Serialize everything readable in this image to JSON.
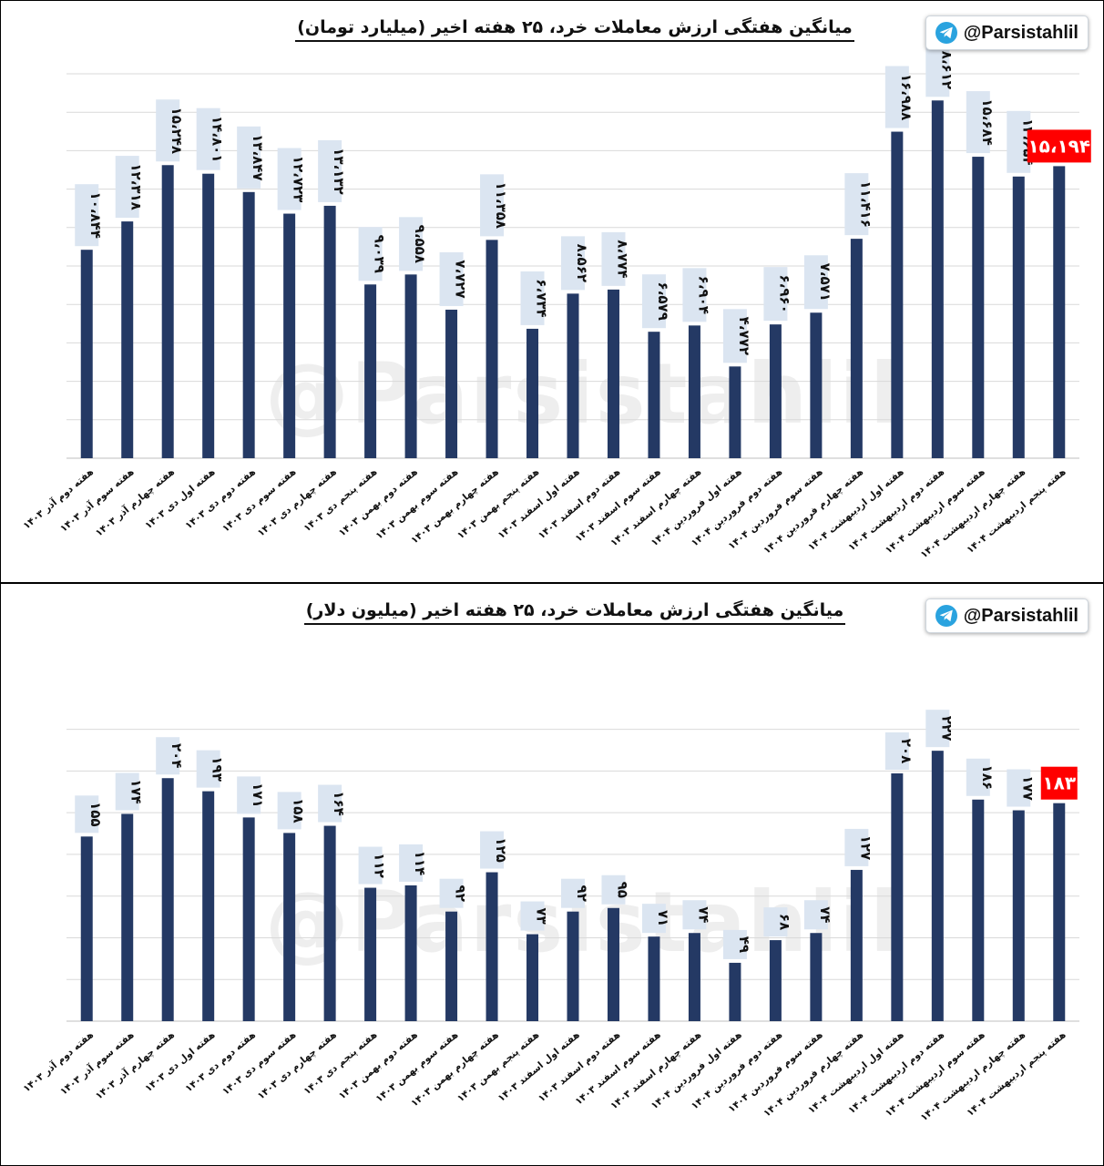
{
  "watermark": "@Parsistahlil",
  "badge": {
    "handle": "@Parsistahlil",
    "icon": "telegram-icon",
    "color": "#2aa3df"
  },
  "colors": {
    "bar": "#243964",
    "label_bg": "#dbe5f1",
    "highlight": "#ff0000",
    "grid": "#d9d9d9"
  },
  "chart_data": [
    {
      "type": "bar",
      "title": "میانگین هفتگی ارزش معاملات خرد، ۲۵ هفته اخیر (میلیارد تومان)",
      "xlabel": "",
      "ylabel": "",
      "ylim": [
        0,
        20000
      ],
      "grid": true,
      "categories": [
        "هفته دوم آذر ۱۴۰۳",
        "هفته سوم آذر ۱۴۰۳",
        "هفته چهارم آذر ۱۴۰۳",
        "هفته اول دی ۱۴۰۳",
        "هفته دوم دی ۱۴۰۳",
        "هفته سوم دی ۱۴۰۳",
        "هفته چهارم دی ۱۴۰۳",
        "هفته پنجم دی ۱۴۰۳",
        "هفته دوم بهمن ۱۴۰۳",
        "هفته سوم بهمن ۱۴۰۳",
        "هفته چهارم بهمن ۱۴۰۳",
        "هفته پنجم بهمن ۱۴۰۳",
        "هفته اول اسفند ۱۴۰۳",
        "هفته دوم اسفند ۱۴۰۳",
        "هفته سوم اسفند ۱۴۰۳",
        "هفته چهارم اسفند ۱۴۰۳",
        "هفته اول فروردین ۱۴۰۴",
        "هفته دوم فروردین ۱۴۰۴",
        "هفته سوم فروردین ۱۴۰۴",
        "هفته چهارم فروردین ۱۴۰۴",
        "هفته اول اردیبهشت ۱۴۰۴",
        "هفته دوم اردیبهشت ۱۴۰۴",
        "هفته سوم اردیبهشت ۱۴۰۴",
        "هفته چهارم اردیبهشت ۱۴۰۴",
        "هفته پنجم اردیبهشت ۱۴۰۴"
      ],
      "values": [
        10844,
        12318,
        15248,
        14801,
        13847,
        12723,
        13132,
        9039,
        9558,
        7727,
        11358,
        6734,
        8562,
        8774,
        6579,
        6904,
        4772,
        6960,
        7571,
        11416,
        16988,
        18612,
        15684,
        14654,
        15194
      ],
      "data_labels": [
        "۱۰،۸۴۴",
        "۱۲،۳۱۸",
        "۱۵،۲۴۸",
        "۱۴،۸۰۱",
        "۱۳،۸۴۷",
        "۱۲،۷۲۳",
        "۱۳،۱۳۲",
        "۹،۰۳۹",
        "۹،۵۵۸",
        "۷،۷۲۷",
        "۱۱،۳۵۸",
        "۶،۷۳۴",
        "۸،۵۶۲",
        "۸،۷۷۴",
        "۶،۵۷۹",
        "۶،۹۰۴",
        "۴،۷۷۲",
        "۶،۹۶۰",
        "۷،۵۷۱",
        "۱۱،۴۱۶",
        "۱۶،۹۸۸",
        "۱۸،۶۱۲",
        "۱۵،۶۸۴",
        "۱۴،۶۵۴",
        "۱۵،۱۹۴"
      ],
      "highlight_index": 24
    },
    {
      "type": "bar",
      "title": "میانگین هفتگی ارزش معاملات خرد، ۲۵ هفته اخیر (میلیون دلار)",
      "xlabel": "",
      "ylabel": "",
      "ylim": [
        0,
        260
      ],
      "grid": true,
      "categories": [
        "هفته دوم آذر ۱۴۰۳",
        "هفته سوم آذر ۱۴۰۳",
        "هفته چهارم آذر ۱۴۰۳",
        "هفته اول دی ۱۴۰۳",
        "هفته دوم دی ۱۴۰۳",
        "هفته سوم دی ۱۴۰۳",
        "هفته چهارم دی ۱۴۰۳",
        "هفته پنجم دی ۱۴۰۳",
        "هفته دوم بهمن ۱۴۰۳",
        "هفته سوم بهمن ۱۴۰۳",
        "هفته چهارم بهمن ۱۴۰۳",
        "هفته پنجم بهمن ۱۴۰۳",
        "هفته اول اسفند ۱۴۰۳",
        "هفته دوم اسفند ۱۴۰۳",
        "هفته سوم اسفند ۱۴۰۳",
        "هفته چهارم اسفند ۱۴۰۳",
        "هفته اول فروردین ۱۴۰۴",
        "هفته دوم فروردین ۱۴۰۴",
        "هفته سوم فروردین ۱۴۰۴",
        "هفته چهارم فروردین ۱۴۰۴",
        "هفته اول اردیبهشت ۱۴۰۴",
        "هفته دوم اردیبهشت ۱۴۰۴",
        "هفته سوم اردیبهشت ۱۴۰۴",
        "هفته چهارم اردیبهشت ۱۴۰۴",
        "هفته پنجم اردیبهشت ۱۴۰۴"
      ],
      "values": [
        155,
        174,
        204,
        193,
        171,
        158,
        164,
        112,
        114,
        92,
        125,
        73,
        92,
        95,
        71,
        74,
        49,
        68,
        74,
        127,
        208,
        227,
        186,
        177,
        183
      ],
      "data_labels": [
        "۱۵۵",
        "۱۷۴",
        "۲۰۴",
        "۱۹۳",
        "۱۷۱",
        "۱۵۸",
        "۱۶۴",
        "۱۱۲",
        "۱۱۴",
        "۹۲",
        "۱۲۵",
        "۷۳",
        "۹۲",
        "۹۵",
        "۷۱",
        "۷۴",
        "۴۹",
        "۶۸",
        "۷۴",
        "۱۲۷",
        "۲۰۸",
        "۲۲۷",
        "۱۸۶",
        "۱۷۷",
        "۱۸۳"
      ],
      "highlight_index": 24
    }
  ]
}
